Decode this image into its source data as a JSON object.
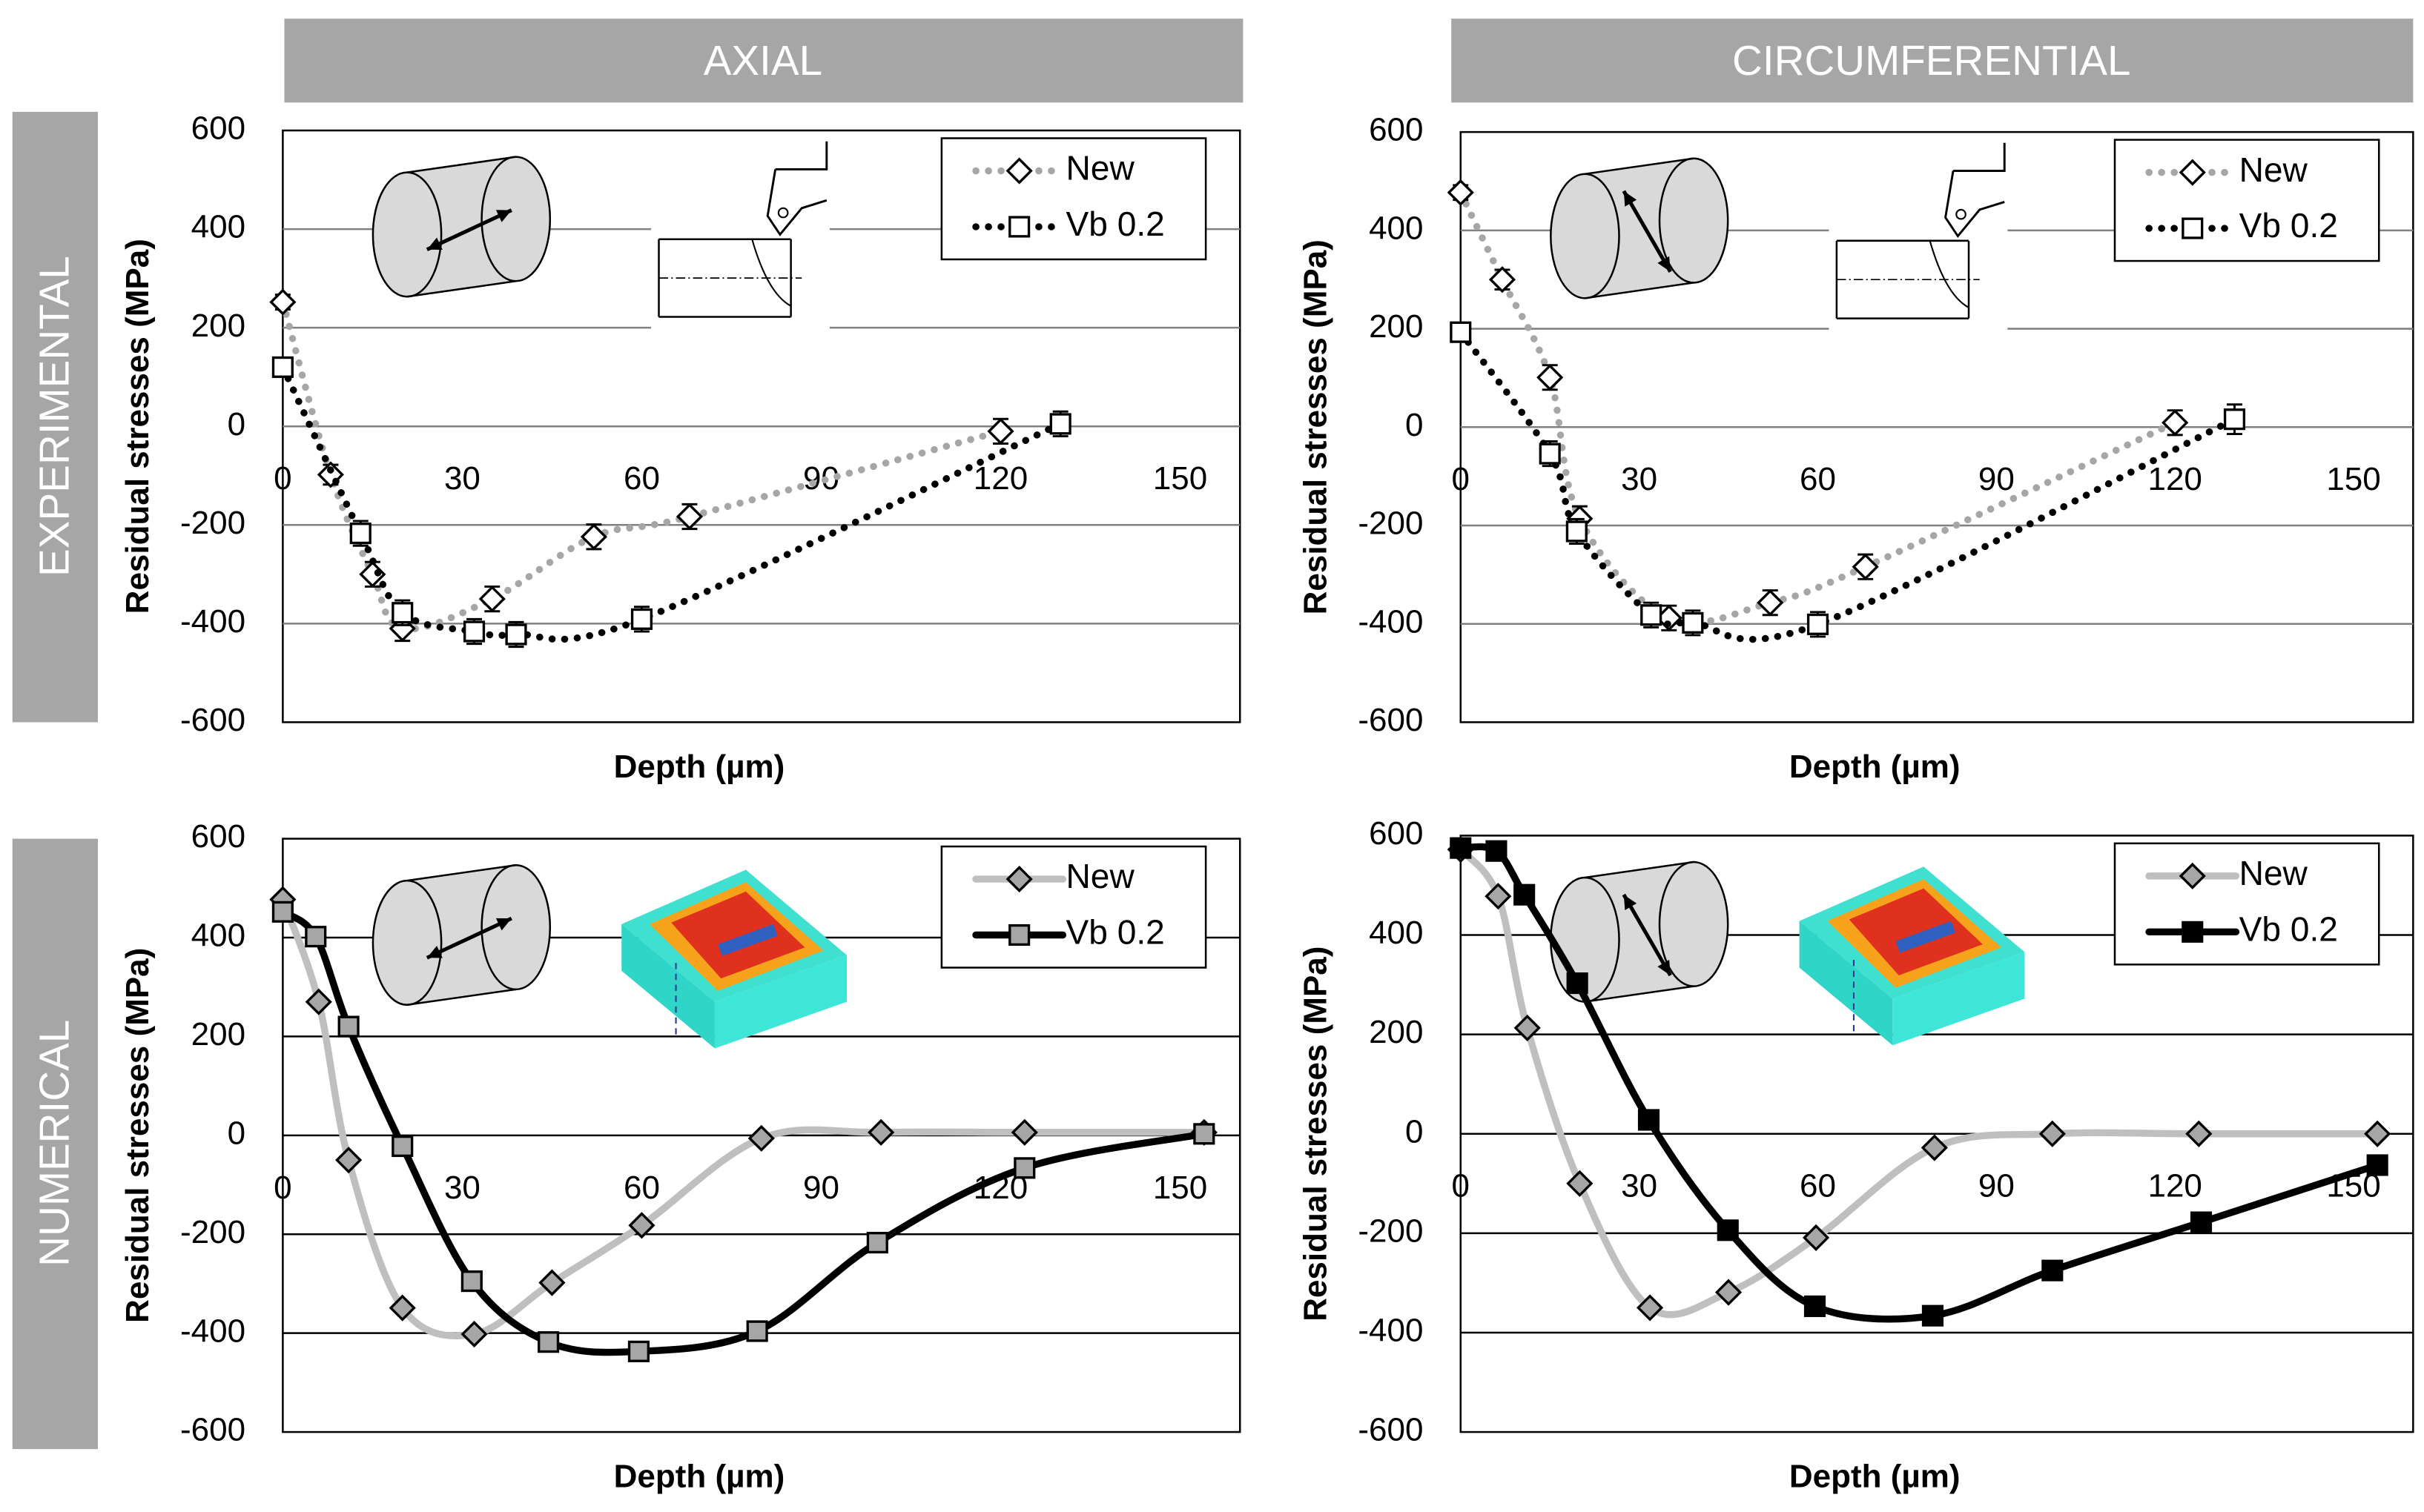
{
  "column_headers": [
    "AXIAL",
    "CIRCUMFERENTIAL"
  ],
  "row_headers": [
    "EXPERIMENTAL",
    "NUMERICAL"
  ],
  "chart_data": [
    {
      "type": "line",
      "xlabel": "Depth (µm)",
      "ylabel": "Residual stresses (MPa)",
      "xlim": [
        0,
        160
      ],
      "ylim": [
        -600,
        600
      ],
      "xticks": [
        0,
        30,
        60,
        90,
        120,
        150
      ],
      "yticks": [
        -600,
        -400,
        -200,
        0,
        200,
        400,
        600
      ],
      "grid": true,
      "legend": "top-right",
      "series": [
        {
          "name": "New",
          "color": "#a6a6a6",
          "marker": "diamond",
          "marker_fill": "#ffffff",
          "line_style": "dotted",
          "x": [
            0,
            8,
            15,
            20,
            35,
            52,
            68,
            120
          ],
          "values": [
            252,
            -98,
            -300,
            -410,
            -350,
            -224,
            -183,
            -10
          ],
          "errors": [
            15,
            20,
            25,
            25,
            25,
            25,
            25,
            25
          ]
        },
        {
          "name": "Vb 0.2",
          "color": "#000000",
          "marker": "square",
          "marker_fill": "#ffffff",
          "line_style": "dotted",
          "x": [
            0,
            13,
            20,
            32,
            39,
            60,
            130
          ],
          "values": [
            120,
            -217,
            -378,
            -416,
            -422,
            -391,
            5
          ],
          "errors": [
            15,
            25,
            25,
            25,
            25,
            25,
            25
          ]
        }
      ]
    },
    {
      "type": "line",
      "xlabel": "Depth (µm)",
      "ylabel": "Residual stresses (MPa)",
      "xlim": [
        0,
        160
      ],
      "ylim": [
        -600,
        600
      ],
      "xticks": [
        0,
        30,
        60,
        90,
        120,
        150
      ],
      "yticks": [
        -600,
        -400,
        -200,
        0,
        200,
        400,
        600
      ],
      "grid": true,
      "legend": "top-right",
      "series": [
        {
          "name": "New",
          "color": "#a6a6a6",
          "marker": "diamond",
          "marker_fill": "#ffffff",
          "line_style": "dotted",
          "x": [
            0,
            7,
            15,
            20,
            35,
            52,
            68,
            120
          ],
          "values": [
            477,
            300,
            101,
            -186,
            -388,
            -357,
            -284,
            9
          ],
          "errors": [
            15,
            20,
            25,
            25,
            25,
            25,
            25,
            25
          ]
        },
        {
          "name": "Vb 0.2",
          "color": "#000000",
          "marker": "square",
          "marker_fill": "#ffffff",
          "line_style": "dotted",
          "x": [
            0,
            15,
            19.5,
            32,
            39,
            60,
            130
          ],
          "values": [
            193,
            -54,
            -212,
            -382,
            -398,
            -401,
            16
          ],
          "errors": [
            15,
            25,
            25,
            25,
            25,
            25,
            30
          ]
        }
      ]
    },
    {
      "type": "line",
      "xlabel": "Depth (µm)",
      "ylabel": "Residual stresses (MPa)",
      "xlim": [
        0,
        160
      ],
      "ylim": [
        -600,
        600
      ],
      "xticks": [
        0,
        30,
        60,
        90,
        120,
        150
      ],
      "yticks": [
        -600,
        -400,
        -200,
        0,
        200,
        400,
        600
      ],
      "grid": true,
      "legend": "top-right",
      "series": [
        {
          "name": "New",
          "color": "#bfbfbf",
          "marker": "diamond",
          "marker_fill": "#a6a6a6",
          "line_style": "solid",
          "x": [
            0,
            6,
            11,
            20,
            32,
            45,
            60,
            80,
            100,
            124,
            154
          ],
          "values": [
            477,
            270,
            -50,
            -349,
            -402,
            -298,
            -182,
            -6,
            6,
            6,
            6
          ]
        },
        {
          "name": "Vb 0.2",
          "color": "#000000",
          "marker": "square",
          "marker_fill": "#a6a6a6",
          "line_style": "solid",
          "x": [
            0,
            5.5,
            11,
            20,
            31.6,
            44.4,
            59.5,
            79.3,
            99.4,
            124,
            154
          ],
          "values": [
            452,
            402,
            220,
            -22,
            -295,
            -418,
            -437,
            -396,
            -217,
            -66,
            3
          ]
        }
      ]
    },
    {
      "type": "line",
      "xlabel": "Depth (µm)",
      "ylabel": "Residual stresses (MPa)",
      "xlim": [
        0,
        160
      ],
      "ylim": [
        -600,
        600
      ],
      "xticks": [
        0,
        30,
        60,
        90,
        120,
        150
      ],
      "yticks": [
        -600,
        -400,
        -200,
        0,
        200,
        400,
        600
      ],
      "grid": true,
      "legend": "top-right",
      "series": [
        {
          "name": "New",
          "color": "#bfbfbf",
          "marker": "diamond",
          "marker_fill": "#a6a6a6",
          "line_style": "solid",
          "x": [
            0,
            6.3,
            11.2,
            20,
            31.8,
            45,
            59.7,
            79.6,
            99.4,
            124,
            154
          ],
          "values": [
            572,
            478,
            213,
            -100,
            -350,
            -319,
            -209,
            -28,
            0,
            0,
            0
          ]
        },
        {
          "name": "Vb 0.2",
          "color": "#000000",
          "marker": "square",
          "marker_fill": "#000000",
          "line_style": "solid",
          "x": [
            0,
            6,
            10.7,
            19.6,
            31.6,
            44.9,
            59.5,
            79.3,
            99.4,
            124.4,
            154
          ],
          "values": [
            575,
            569,
            481,
            303,
            28,
            -194,
            -347,
            -366,
            -275,
            -178,
            -63
          ]
        }
      ]
    }
  ]
}
